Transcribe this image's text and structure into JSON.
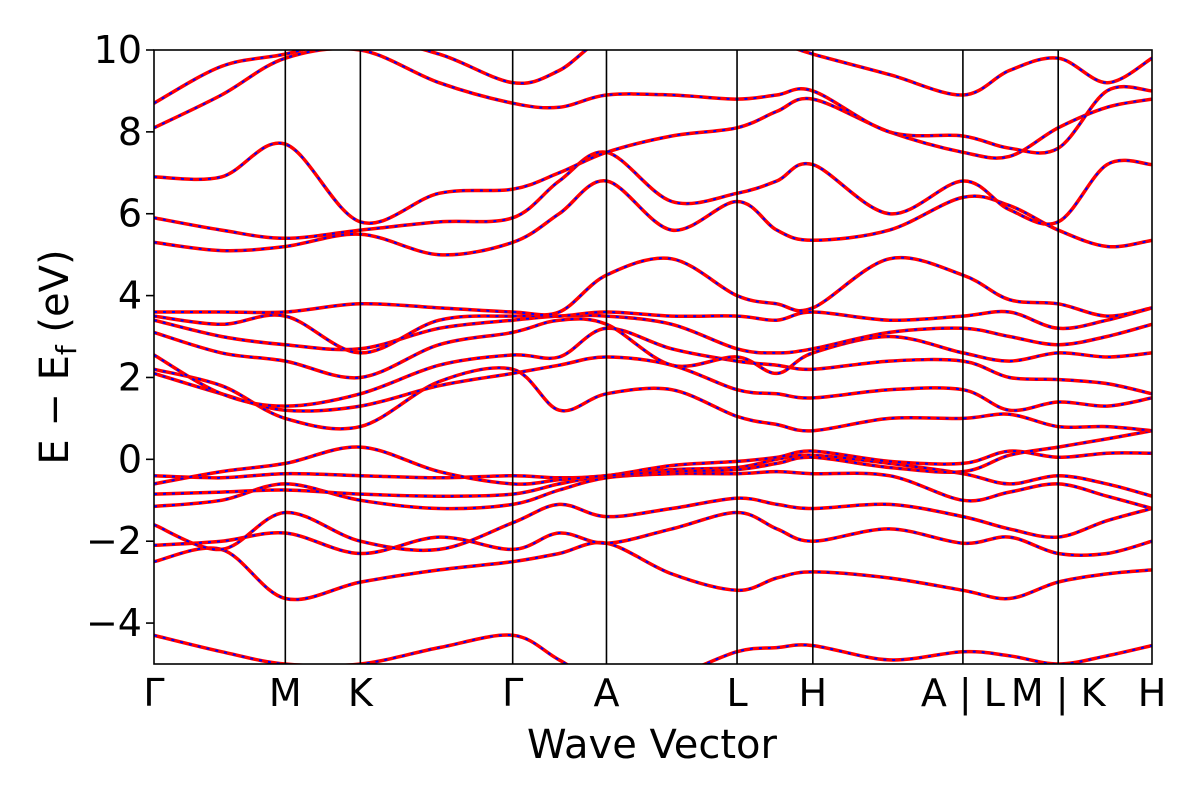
{
  "chart_data": {
    "type": "line",
    "title": "",
    "xlabel": "Wave Vector",
    "ylabel_main": "E − E",
    "ylabel_sub": "f",
    "ylabel_unit": " (eV)",
    "ylim": [
      -5,
      10
    ],
    "yticks": [
      -4,
      -2,
      0,
      2,
      4,
      6,
      8,
      10
    ],
    "ytick_labels": [
      "−4",
      "−2",
      "0",
      "2",
      "4",
      "6",
      "8",
      "10"
    ],
    "xlim": [
      0,
      13.3
    ],
    "kpoints": [
      {
        "label": "Γ",
        "x": 0
      },
      {
        "label": "M",
        "x": 1.75
      },
      {
        "label": "K",
        "x": 2.75
      },
      {
        "label": "Γ",
        "x": 4.78
      },
      {
        "label": "A",
        "x": 6.03
      },
      {
        "label": "L",
        "x": 7.77
      },
      {
        "label": "H",
        "x": 8.78
      },
      {
        "label": "A | L",
        "x": 10.78
      },
      {
        "label": "M | K",
        "x": 12.05
      },
      {
        "label": "H",
        "x": 13.3
      }
    ],
    "colors": {
      "band_primary": "#ff0000",
      "band_secondary": "#0000ff",
      "kline": "#000000"
    },
    "series": [
      {
        "color": "band_primary",
        "x": [
          0,
          0.9,
          1.75,
          2.75,
          3.8,
          4.78,
          5.4,
          6.03,
          6.9,
          7.77,
          8.3,
          8.78,
          9.8,
          10.78,
          11.4,
          12.05,
          12.7,
          13.3
        ],
        "y": [
          -4.3,
          -4.7,
          -5.0,
          -5.0,
          -4.6,
          -4.3,
          -4.9,
          -5.5,
          -5.3,
          -4.7,
          -4.6,
          -4.55,
          -4.9,
          -4.7,
          -4.8,
          -5.0,
          -4.8,
          -4.55
        ]
      },
      {
        "color": "band_primary",
        "x": [
          0,
          0.9,
          1.75,
          2.75,
          3.8,
          4.78,
          5.4,
          6.03,
          6.9,
          7.77,
          8.3,
          8.78,
          9.8,
          10.78,
          11.4,
          12.05,
          12.7,
          13.3
        ],
        "y": [
          -2.5,
          -2.2,
          -3.4,
          -3.0,
          -2.7,
          -2.5,
          -2.3,
          -2.05,
          -2.8,
          -3.2,
          -2.9,
          -2.75,
          -2.9,
          -3.2,
          -3.4,
          -3.0,
          -2.8,
          -2.7
        ]
      },
      {
        "color": "band_primary",
        "x": [
          0,
          0.9,
          1.75,
          2.75,
          3.8,
          4.78,
          5.4,
          6.03,
          6.9,
          7.77,
          8.3,
          8.78,
          9.8,
          10.78,
          11.4,
          12.05,
          12.7,
          13.3
        ],
        "y": [
          -2.1,
          -2.0,
          -1.8,
          -2.3,
          -1.9,
          -2.2,
          -1.8,
          -2.05,
          -1.7,
          -1.3,
          -1.7,
          -2.0,
          -1.7,
          -2.05,
          -1.9,
          -2.3,
          -2.3,
          -2.0
        ]
      },
      {
        "color": "band_primary",
        "x": [
          0,
          0.9,
          1.75,
          2.75,
          3.8,
          4.78,
          5.4,
          6.03,
          6.9,
          7.77,
          8.3,
          8.78,
          9.8,
          10.78,
          11.4,
          12.05,
          12.7,
          13.3
        ],
        "y": [
          -1.6,
          -2.2,
          -1.3,
          -2.0,
          -2.2,
          -1.55,
          -1.1,
          -1.4,
          -1.2,
          -0.95,
          -1.1,
          -1.2,
          -1.1,
          -1.4,
          -1.7,
          -1.9,
          -1.5,
          -1.2
        ]
      },
      {
        "color": "band_primary",
        "x": [
          0,
          0.9,
          1.75,
          2.75,
          3.8,
          4.78,
          5.4,
          6.03,
          6.9,
          7.77,
          8.3,
          8.78,
          9.8,
          10.78,
          11.4,
          12.05,
          12.7,
          13.3
        ],
        "y": [
          -1.15,
          -1.0,
          -0.6,
          -1.0,
          -1.2,
          -1.1,
          -0.75,
          -0.45,
          -0.35,
          -0.35,
          -0.3,
          -0.35,
          -0.4,
          -1.0,
          -0.8,
          -0.6,
          -0.9,
          -1.2
        ]
      },
      {
        "color": "band_primary",
        "x": [
          0,
          0.9,
          1.75,
          2.75,
          3.8,
          4.78,
          5.4,
          6.03,
          6.9,
          7.77,
          8.3,
          8.78,
          9.8,
          10.78,
          11.4,
          12.05,
          12.7,
          13.3
        ],
        "y": [
          -0.85,
          -0.8,
          -0.75,
          -0.85,
          -0.9,
          -0.85,
          -0.6,
          -0.4,
          -0.25,
          -0.2,
          0.0,
          0.1,
          -0.1,
          -0.35,
          -0.6,
          -0.4,
          -0.6,
          -0.9
        ]
      },
      {
        "color": "band_primary",
        "x": [
          0,
          0.9,
          1.75,
          2.75,
          3.8,
          4.78,
          5.4,
          6.03,
          6.9,
          7.77,
          8.3,
          8.78,
          9.8,
          10.78,
          11.4,
          12.05,
          12.7,
          13.3
        ],
        "y": [
          -0.4,
          -0.45,
          -0.35,
          -0.4,
          -0.45,
          -0.4,
          -0.45,
          -0.4,
          -0.15,
          -0.05,
          0.05,
          0.2,
          -0.05,
          -0.1,
          0.2,
          0.05,
          0.15,
          0.15
        ]
      },
      {
        "color": "band_primary",
        "x": [
          0,
          0.9,
          1.75,
          2.75,
          3.8,
          4.78,
          5.4,
          6.03,
          6.9,
          7.77,
          8.3,
          8.78,
          9.8,
          10.78,
          11.4,
          12.05,
          12.7,
          13.3
        ],
        "y": [
          -0.6,
          -0.3,
          -0.1,
          0.3,
          -0.3,
          -0.6,
          -0.5,
          -0.4,
          -0.3,
          -0.25,
          -0.1,
          0.05,
          -0.2,
          -0.3,
          0.1,
          0.3,
          0.5,
          0.7
        ]
      },
      {
        "color": "band_primary",
        "x": [
          0,
          0.9,
          1.75,
          2.75,
          3.8,
          4.78,
          5.4,
          6.03,
          6.9,
          7.77,
          8.3,
          8.78,
          9.8,
          10.78,
          11.4,
          12.05,
          12.7,
          13.3
        ],
        "y": [
          2.2,
          1.8,
          1.0,
          0.8,
          1.9,
          2.2,
          1.2,
          1.6,
          1.7,
          1.05,
          0.85,
          0.7,
          1.0,
          1.0,
          1.1,
          0.8,
          0.8,
          0.7
        ]
      },
      {
        "color": "band_primary",
        "x": [
          0,
          0.9,
          1.75,
          2.75,
          3.8,
          4.78,
          5.4,
          6.03,
          6.9,
          7.77,
          8.3,
          8.78,
          9.8,
          10.78,
          11.4,
          12.05,
          12.7,
          13.3
        ],
        "y": [
          2.1,
          1.6,
          1.2,
          1.3,
          1.8,
          2.1,
          2.3,
          2.5,
          2.3,
          1.7,
          1.6,
          1.5,
          1.7,
          1.7,
          1.2,
          1.4,
          1.3,
          1.5
        ]
      },
      {
        "color": "band_primary",
        "x": [
          0,
          0.9,
          1.75,
          2.75,
          3.8,
          4.78,
          5.4,
          6.03,
          6.9,
          7.77,
          8.3,
          8.78,
          9.8,
          10.78,
          11.4,
          12.05,
          12.7,
          13.3
        ],
        "y": [
          2.55,
          1.6,
          1.3,
          1.6,
          2.3,
          2.55,
          2.5,
          3.2,
          2.7,
          2.4,
          2.3,
          2.2,
          2.4,
          2.4,
          2.0,
          1.95,
          1.85,
          1.6
        ]
      },
      {
        "color": "band_primary",
        "x": [
          0,
          0.9,
          1.75,
          2.75,
          3.8,
          4.78,
          5.4,
          6.03,
          6.9,
          7.77,
          8.3,
          8.78,
          9.8,
          10.78,
          11.4,
          12.05,
          12.7,
          13.3
        ],
        "y": [
          3.1,
          2.6,
          2.4,
          2.0,
          2.8,
          3.1,
          3.4,
          3.3,
          2.3,
          2.5,
          2.1,
          2.6,
          3.0,
          2.6,
          2.4,
          2.6,
          2.5,
          2.6
        ]
      },
      {
        "color": "band_primary",
        "x": [
          0,
          0.9,
          1.75,
          2.75,
          3.8,
          4.78,
          5.4,
          6.03,
          6.9,
          7.77,
          8.3,
          8.78,
          9.8,
          10.78,
          11.4,
          12.05,
          12.7,
          13.3
        ],
        "y": [
          3.4,
          3.0,
          2.8,
          2.7,
          3.2,
          3.4,
          3.5,
          3.5,
          3.3,
          2.7,
          2.6,
          2.7,
          3.1,
          3.2,
          3.0,
          2.8,
          3.0,
          3.3
        ]
      },
      {
        "color": "band_primary",
        "x": [
          0,
          0.9,
          1.75,
          2.75,
          3.8,
          4.78,
          5.4,
          6.03,
          6.9,
          7.77,
          8.3,
          8.78,
          9.8,
          10.78,
          11.4,
          12.05,
          12.7,
          13.3
        ],
        "y": [
          3.5,
          3.3,
          3.5,
          2.6,
          3.4,
          3.5,
          3.5,
          3.6,
          3.5,
          3.5,
          3.4,
          3.6,
          3.4,
          3.5,
          3.6,
          3.2,
          3.4,
          3.7
        ]
      },
      {
        "color": "band_primary",
        "x": [
          0,
          0.9,
          1.75,
          2.75,
          3.8,
          4.78,
          5.4,
          6.03,
          6.9,
          7.77,
          8.3,
          8.78,
          9.8,
          10.78,
          11.4,
          12.05,
          12.7,
          13.3
        ],
        "y": [
          3.6,
          3.6,
          3.6,
          3.8,
          3.7,
          3.6,
          3.6,
          4.5,
          4.9,
          4.0,
          3.8,
          3.7,
          4.9,
          4.5,
          3.9,
          3.8,
          3.5,
          3.7
        ]
      },
      {
        "color": "band_primary",
        "x": [
          0,
          0.9,
          1.75,
          2.75,
          3.8,
          4.78,
          5.4,
          6.03,
          6.9,
          7.77,
          8.3,
          8.78,
          9.8,
          10.78,
          11.4,
          12.05,
          12.7,
          13.3
        ],
        "y": [
          5.3,
          5.1,
          5.2,
          5.5,
          5.0,
          5.3,
          6.0,
          6.8,
          5.6,
          6.3,
          5.6,
          5.35,
          5.6,
          6.4,
          6.2,
          5.6,
          5.2,
          5.35
        ]
      },
      {
        "color": "band_primary",
        "x": [
          0,
          0.9,
          1.75,
          2.75,
          3.8,
          4.78,
          5.4,
          6.03,
          6.9,
          7.77,
          8.3,
          8.78,
          9.8,
          10.78,
          11.4,
          12.05,
          12.7,
          13.3
        ],
        "y": [
          5.9,
          5.6,
          5.4,
          5.6,
          5.8,
          5.9,
          6.8,
          7.5,
          6.3,
          6.5,
          6.8,
          7.2,
          6.0,
          6.8,
          6.1,
          5.8,
          7.2,
          7.2
        ]
      },
      {
        "color": "band_primary",
        "x": [
          0,
          0.9,
          1.75,
          2.75,
          3.8,
          4.78,
          5.4,
          6.03,
          6.9,
          7.77,
          8.3,
          8.78,
          9.8,
          10.78,
          11.4,
          12.05,
          12.7,
          13.3
        ],
        "y": [
          6.9,
          6.9,
          7.7,
          5.8,
          6.5,
          6.6,
          7.0,
          7.5,
          7.9,
          8.1,
          8.5,
          8.8,
          8.0,
          7.5,
          7.4,
          8.1,
          8.6,
          8.8
        ]
      },
      {
        "color": "band_primary",
        "x": [
          0,
          0.9,
          1.75,
          2.75,
          3.8,
          4.78,
          5.4,
          6.03,
          6.9,
          7.77,
          8.3,
          8.78,
          9.8,
          10.78,
          11.4,
          12.05,
          12.7,
          13.3
        ],
        "y": [
          8.1,
          8.9,
          9.8,
          10.0,
          9.2,
          8.7,
          8.6,
          8.9,
          8.9,
          8.8,
          8.9,
          9.0,
          8.0,
          7.9,
          7.6,
          7.6,
          9.0,
          9.0
        ]
      },
      {
        "color": "band_primary",
        "x": [
          0,
          0.9,
          1.75,
          2.75,
          3.8,
          4.78,
          5.4,
          6.03,
          6.9,
          7.77,
          8.3,
          8.78,
          9.8,
          10.78,
          11.4,
          12.05,
          12.7,
          13.3
        ],
        "y": [
          8.7,
          9.6,
          9.9,
          10.3,
          9.9,
          9.2,
          9.5,
          10.3,
          10.4,
          10.5,
          10.2,
          9.9,
          9.4,
          8.9,
          9.5,
          9.8,
          9.2,
          9.8
        ]
      }
    ]
  }
}
